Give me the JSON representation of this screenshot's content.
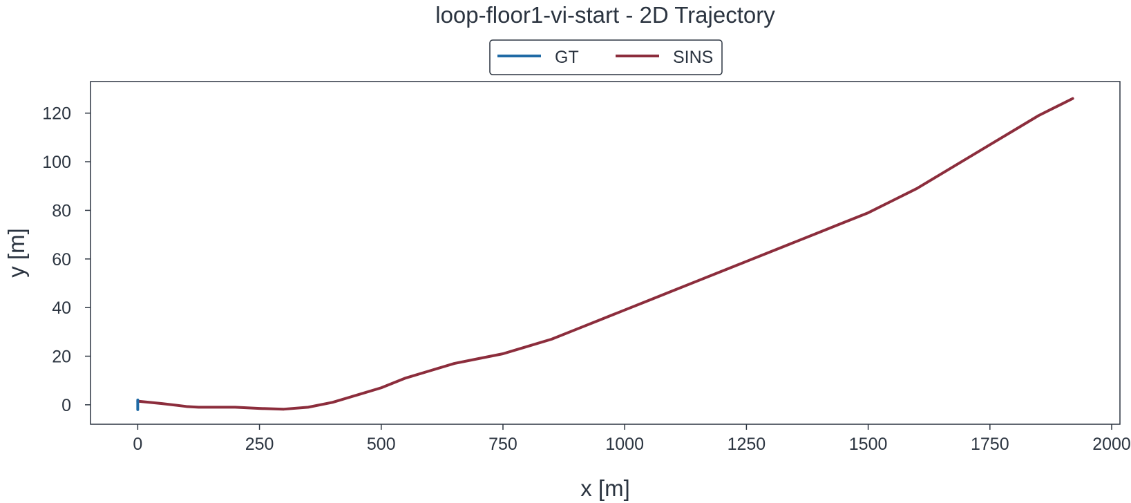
{
  "chart_data": {
    "type": "line",
    "title": "loop-floor1-vi-start - 2D Trajectory",
    "xlabel": "x [m]",
    "ylabel": "y [m]",
    "xlim": [
      -97,
      2017
    ],
    "ylim": [
      -8,
      133
    ],
    "xticks": [
      0,
      250,
      500,
      750,
      1000,
      1250,
      1500,
      1750,
      2000
    ],
    "yticks": [
      0,
      20,
      40,
      60,
      80,
      100,
      120
    ],
    "grid": false,
    "legend": {
      "placement": "top-center",
      "columns": 2
    },
    "series": [
      {
        "name": "GT",
        "color": "#1f6aa5",
        "x": [
          0,
          0,
          0,
          0,
          0
        ],
        "y": [
          2,
          1,
          0,
          -1,
          -2
        ]
      },
      {
        "name": "SINS",
        "color": "#8c2d3c",
        "x": [
          0,
          50,
          100,
          125,
          200,
          250,
          300,
          350,
          400,
          450,
          500,
          550,
          600,
          650,
          700,
          750,
          800,
          850,
          900,
          950,
          1000,
          1050,
          1100,
          1150,
          1200,
          1250,
          1300,
          1350,
          1400,
          1450,
          1500,
          1550,
          1600,
          1650,
          1700,
          1750,
          1800,
          1850,
          1900,
          1920
        ],
        "y": [
          1.5,
          0.5,
          -0.7,
          -1,
          -1,
          -1.5,
          -1.8,
          -1,
          1,
          4,
          7,
          11,
          14,
          17,
          19,
          21,
          24,
          27,
          31,
          35,
          39,
          43,
          47,
          51,
          55,
          59,
          63,
          67,
          71,
          75,
          79,
          84,
          89,
          95,
          101,
          107,
          113,
          119,
          124,
          126
        ]
      }
    ]
  }
}
